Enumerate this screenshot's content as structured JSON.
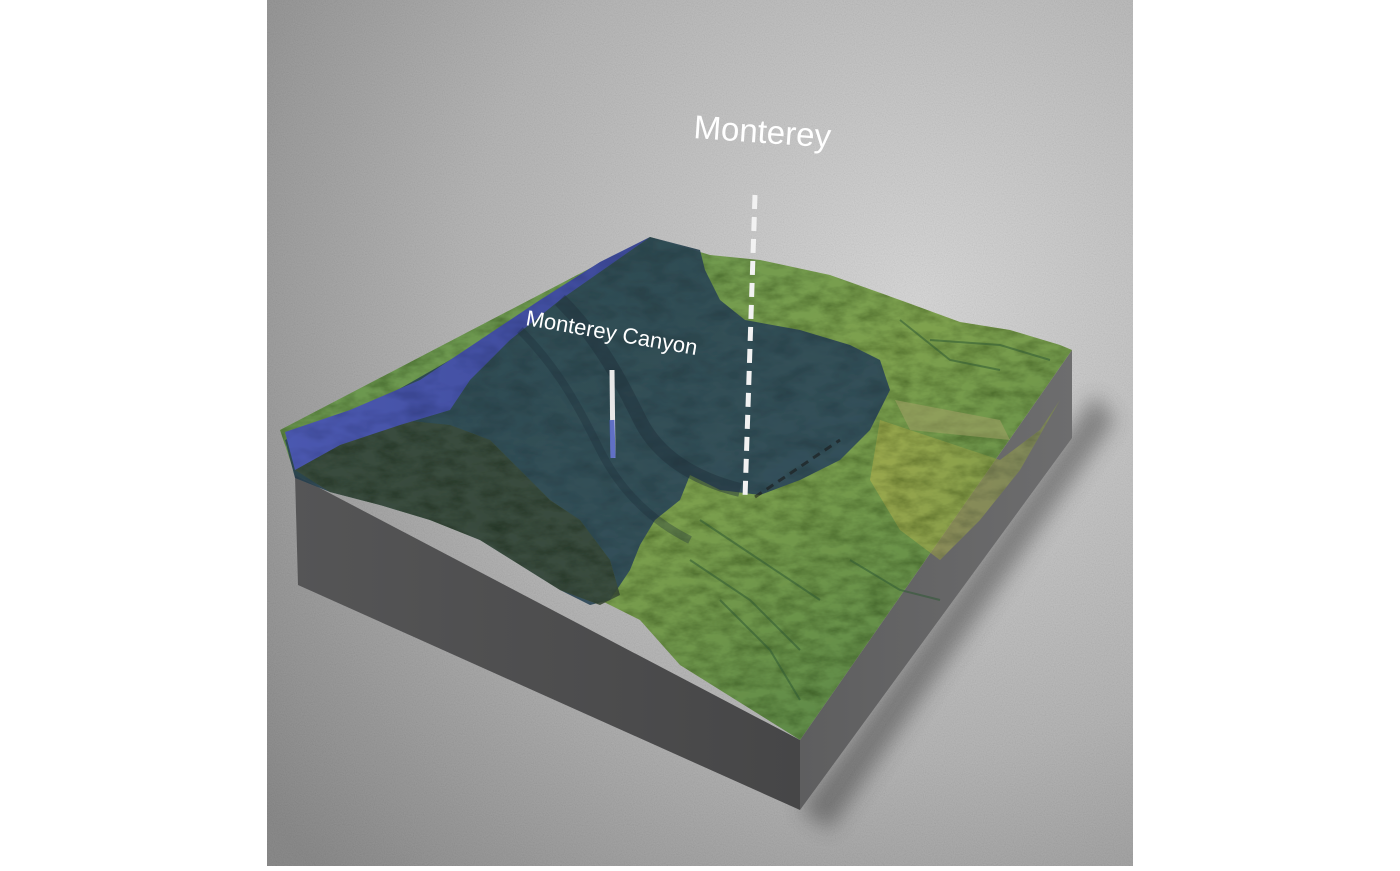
{
  "scene": {
    "type": "3d-relief-map-render",
    "colors": {
      "frame_background": "#ffffff",
      "floor_light": "#d8d8d8",
      "floor_dark": "#8a8a8a",
      "block_side_front": "#4e4e4f",
      "block_side_right": "#5f5f60",
      "water_deep": "#4553a8",
      "water_shallow": "#2f4a5e",
      "land_green": "#5a8a4a",
      "land_yellow": "#b5b04a",
      "label_color": "#ffffff"
    },
    "labels": {
      "monterey": "Monterey",
      "canyon": "Monterey Canyon"
    }
  }
}
